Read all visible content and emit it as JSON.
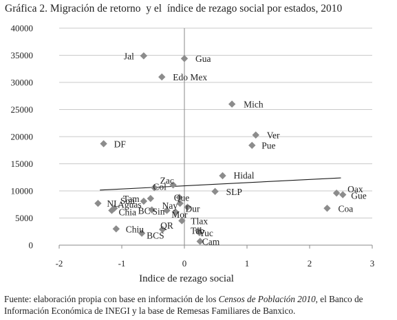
{
  "chart_data": {
    "type": "scatter",
    "title": "Gráfica 2. Migración de retorno  y el  índice de rezago social por estados, 2010",
    "xlabel": "Indice de rezago social",
    "ylabel": "",
    "xlim": [
      -2,
      3
    ],
    "ylim": [
      0,
      40000
    ],
    "xticks": [
      -2,
      -1,
      0,
      1,
      2,
      3
    ],
    "yticks": [
      0,
      5000,
      10000,
      15000,
      20000,
      25000,
      30000,
      35000,
      40000
    ],
    "grid": "horizontal",
    "legend": "none",
    "marker": "diamond",
    "marker_color": "#8c8c8c",
    "trendline": {
      "type": "linear",
      "x": [
        -1.35,
        2.5
      ],
      "y": [
        10150,
        12400
      ],
      "color": "#1a1a1a"
    },
    "points": [
      {
        "label": "Jal",
        "x": -0.65,
        "y": 34900
      },
      {
        "label": "Gua",
        "x": 0.0,
        "y": 34400
      },
      {
        "label": "Edo Mex",
        "x": -0.36,
        "y": 31000
      },
      {
        "label": "Mich",
        "x": 0.76,
        "y": 26000
      },
      {
        "label": "Ver",
        "x": 1.14,
        "y": 20300
      },
      {
        "label": "DF",
        "x": -1.29,
        "y": 18700
      },
      {
        "label": "Pue",
        "x": 1.08,
        "y": 18400
      },
      {
        "label": "Hidal",
        "x": 0.61,
        "y": 12800
      },
      {
        "label": "Zac",
        "x": -0.18,
        "y": 11100
      },
      {
        "label": "Col",
        "x": -0.48,
        "y": 10600
      },
      {
        "label": "SLP",
        "x": 0.49,
        "y": 9900
      },
      {
        "label": "Oax",
        "x": 2.43,
        "y": 9600
      },
      {
        "label": "Gue",
        "x": 2.53,
        "y": 9300
      },
      {
        "label": "Que",
        "x": -0.08,
        "y": 8800
      },
      {
        "label": "Tam",
        "x": -0.54,
        "y": 8600
      },
      {
        "label": "Son",
        "x": -0.65,
        "y": 8100
      },
      {
        "label": "Nay",
        "x": -0.07,
        "y": 7700
      },
      {
        "label": "NL",
        "x": -1.38,
        "y": 7700
      },
      {
        "label": "Dur",
        "x": 0.05,
        "y": 7000
      },
      {
        "label": "Coa",
        "x": 2.28,
        "y": 6800
      },
      {
        "label": "Aguas",
        "x": -1.12,
        "y": 6800
      },
      {
        "label": "BC",
        "x": -0.52,
        "y": 6500
      },
      {
        "label": "Chia",
        "x": -1.16,
        "y": 6400
      },
      {
        "label": "Sin",
        "x": -0.28,
        "y": 6400
      },
      {
        "label": "Mor",
        "x": -0.14,
        "y": 6100
      },
      {
        "label": "Tlax",
        "x": -0.04,
        "y": 4500
      },
      {
        "label": "Chiu",
        "x": -1.09,
        "y": 3000
      },
      {
        "label": "QR",
        "x": -0.35,
        "y": 2900
      },
      {
        "label": "Tab",
        "x": 0.22,
        "y": 2700
      },
      {
        "label": "Yuc",
        "x": 0.24,
        "y": 2300
      },
      {
        "label": "BCS",
        "x": -0.68,
        "y": 2200
      },
      {
        "label": "Cam",
        "x": 0.25,
        "y": 700
      }
    ]
  },
  "source": {
    "prefix": "Fuente: elaboración propia con base en información de los ",
    "italic": "Censos de Población 2010",
    "suffix": ", el Banco de Información Económica de INEGI y la base de Remesas Familiares de Banxico."
  }
}
